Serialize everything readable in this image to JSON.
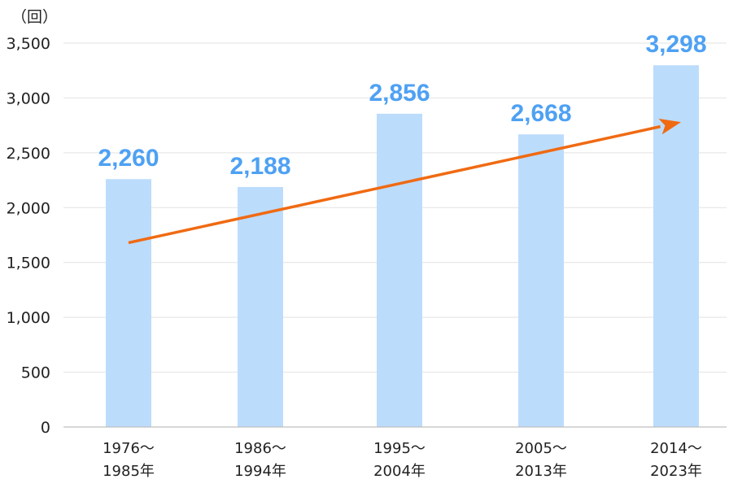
{
  "chart_data": {
    "type": "bar",
    "unit_label": "（回）",
    "categories": [
      [
        "1976～",
        "1985年"
      ],
      [
        "1986～",
        "1994年"
      ],
      [
        "1995～",
        "2004年"
      ],
      [
        "2005～",
        "2013年"
      ],
      [
        "2014～",
        "2023年"
      ]
    ],
    "values": [
      2260,
      2188,
      2856,
      2668,
      3298
    ],
    "data_labels": [
      "2,260",
      "2,188",
      "2,856",
      "2,668",
      "3,298"
    ],
    "y_ticks": [
      0,
      500,
      1000,
      1500,
      2000,
      2500,
      3000,
      3500
    ],
    "y_tick_labels": [
      "0",
      "500",
      "1,000",
      "1,500",
      "2,000",
      "2,500",
      "3,000",
      "3,500"
    ],
    "ylim": [
      0,
      3500
    ],
    "grid": true,
    "trend_arrow": {
      "from_category": 0,
      "from_value": 1680,
      "to_category": 4,
      "to_value": 2780
    },
    "colors": {
      "bar": "#bcdcfc",
      "data_label": "#4ea1f3",
      "arrow": "#f06a12",
      "grid": "#e2e2e2",
      "axis": "#bfbfbf"
    }
  }
}
